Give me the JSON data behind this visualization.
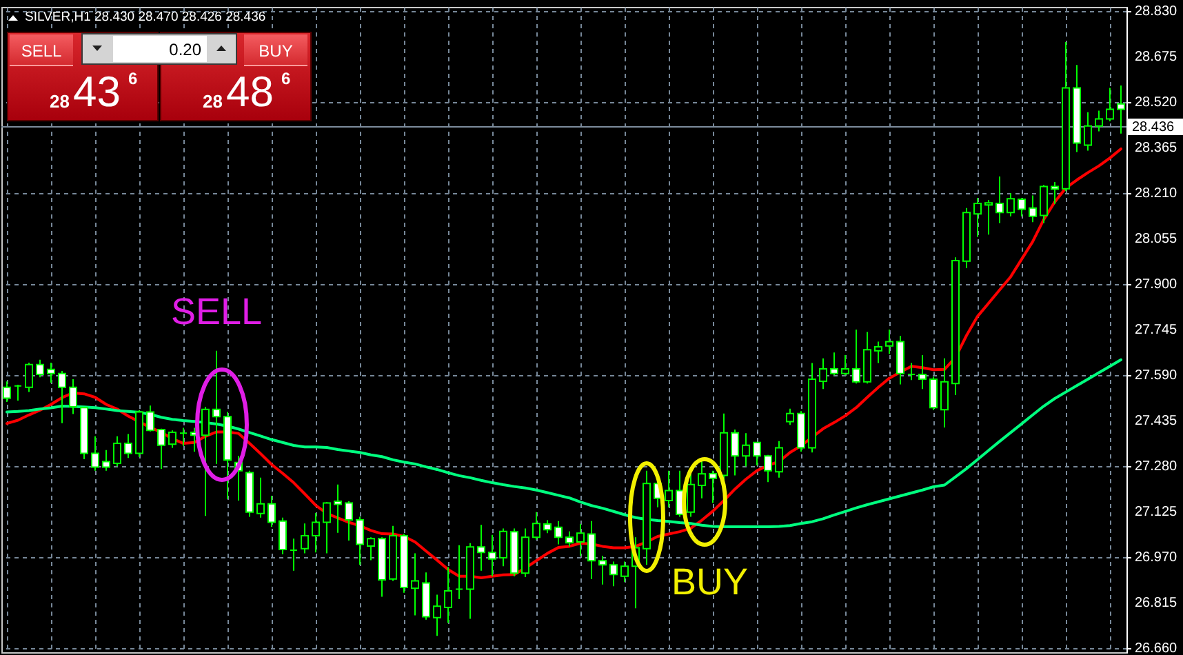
{
  "chart_data": {
    "type": "candlestick",
    "title": "SILVER,H1 28.430 28.470 28.426 28.436",
    "categories": [
      null,
      null,
      null,
      null,
      null,
      null,
      null,
      null,
      null,
      null,
      null,
      null,
      null,
      null,
      null,
      null,
      null,
      null,
      null,
      null,
      null,
      null,
      null,
      null,
      null,
      null,
      null,
      null,
      null,
      null,
      null,
      null,
      null,
      null,
      null,
      null,
      null,
      null,
      null,
      null,
      null,
      null,
      null,
      null,
      null,
      null,
      null,
      null,
      null,
      null,
      null,
      null,
      null,
      null,
      null,
      null,
      null,
      null,
      null,
      null,
      null,
      null,
      null,
      null,
      null,
      null,
      null,
      null,
      null,
      null,
      null,
      null,
      null,
      null,
      null,
      null,
      null,
      null,
      null,
      null,
      null,
      null,
      null,
      null,
      null,
      null,
      null,
      null,
      null,
      null,
      null,
      null,
      null,
      null,
      null,
      null,
      null,
      null,
      null,
      null,
      null,
      null
    ],
    "ohlc": [
      [
        27.548,
        27.568,
        27.498,
        27.511
      ],
      [
        27.553,
        27.557,
        27.503,
        27.553
      ],
      [
        27.548,
        27.632,
        27.532,
        27.626
      ],
      [
        27.626,
        27.642,
        27.582,
        27.592
      ],
      [
        27.609,
        27.632,
        27.564,
        27.595
      ],
      [
        27.595,
        27.604,
        27.426,
        27.548
      ],
      [
        27.548,
        27.576,
        27.457,
        27.482
      ],
      [
        27.479,
        27.482,
        27.303,
        27.323
      ],
      [
        27.323,
        27.381,
        27.264,
        27.276
      ],
      [
        27.295,
        27.334,
        27.264,
        27.276
      ],
      [
        27.289,
        27.381,
        27.279,
        27.357
      ],
      [
        27.357,
        27.389,
        27.307,
        27.323
      ],
      [
        27.323,
        27.47,
        27.31,
        27.464
      ],
      [
        27.464,
        27.486,
        27.398,
        27.401
      ],
      [
        27.404,
        27.407,
        27.27,
        27.351
      ],
      [
        27.354,
        27.401,
        27.342,
        27.395
      ],
      [
        27.392,
        27.41,
        27.348,
        27.392
      ],
      [
        27.395,
        27.41,
        27.329,
        27.385
      ],
      [
        27.385,
        27.482,
        27.11,
        27.473
      ],
      [
        27.473,
        27.673,
        27.287,
        27.448
      ],
      [
        27.448,
        27.464,
        27.167,
        27.3
      ],
      [
        27.292,
        27.314,
        27.162,
        27.264
      ],
      [
        27.257,
        27.264,
        27.107,
        27.123
      ],
      [
        27.118,
        27.24,
        27.104,
        27.151
      ],
      [
        27.151,
        27.178,
        27.073,
        27.088
      ],
      [
        27.092,
        27.104,
        26.979,
        26.995
      ],
      [
        26.993,
        27.032,
        26.923,
        26.993
      ],
      [
        26.998,
        27.084,
        26.982,
        27.042
      ],
      [
        27.042,
        27.12,
        26.985,
        27.088
      ],
      [
        27.088,
        27.157,
        26.982,
        27.154
      ],
      [
        27.16,
        27.217,
        27.052,
        27.149
      ],
      [
        27.154,
        27.16,
        27.026,
        27.096
      ],
      [
        27.096,
        27.107,
        26.943,
        27.013
      ],
      [
        27.007,
        27.037,
        26.959,
        27.032
      ],
      [
        27.032,
        27.037,
        26.834,
        26.892
      ],
      [
        26.895,
        27.076,
        26.888,
        27.042
      ],
      [
        27.042,
        27.048,
        26.848,
        26.866
      ],
      [
        26.863,
        26.982,
        26.771,
        26.888
      ],
      [
        26.881,
        26.917,
        26.756,
        26.766
      ],
      [
        26.763,
        26.841,
        26.701,
        26.802
      ],
      [
        26.798,
        26.935,
        26.745,
        26.854
      ],
      [
        26.86,
        27.01,
        26.826,
        26.86
      ],
      [
        26.86,
        27.017,
        26.759,
        27.004
      ],
      [
        27.004,
        27.079,
        26.923,
        26.985
      ],
      [
        26.985,
        27.045,
        26.904,
        26.963
      ],
      [
        26.967,
        27.067,
        26.938,
        27.057
      ],
      [
        27.056,
        27.067,
        26.904,
        26.915
      ],
      [
        26.915,
        27.067,
        26.901,
        27.037
      ],
      [
        27.037,
        27.123,
        27.029,
        27.084
      ],
      [
        27.082,
        27.095,
        27.051,
        27.063
      ],
      [
        27.071,
        27.092,
        27.013,
        27.037
      ],
      [
        27.037,
        27.057,
        27.006,
        27.018
      ],
      [
        27.021,
        27.082,
        26.974,
        27.051
      ],
      [
        27.048,
        27.092,
        26.895,
        26.957
      ],
      [
        26.957,
        26.974,
        26.876,
        26.943
      ],
      [
        26.943,
        26.954,
        26.87,
        26.91
      ],
      [
        26.904,
        26.954,
        26.885,
        26.938
      ],
      [
        26.938,
        27.037,
        26.795,
        27.001
      ],
      [
        26.998,
        27.264,
        26.943,
        27.22
      ],
      [
        27.22,
        27.229,
        27.139,
        27.17
      ],
      [
        27.162,
        27.264,
        27.139,
        27.196
      ],
      [
        27.196,
        27.264,
        27.107,
        27.115
      ],
      [
        27.123,
        27.264,
        27.107,
        27.217
      ],
      [
        27.214,
        27.303,
        27.17,
        27.253
      ],
      [
        27.254,
        27.264,
        27.154,
        27.238
      ],
      [
        27.248,
        27.459,
        27.232,
        27.393
      ],
      [
        27.393,
        27.404,
        27.248,
        27.314
      ],
      [
        27.314,
        27.392,
        27.279,
        27.351
      ],
      [
        27.36,
        27.36,
        27.282,
        27.314
      ],
      [
        27.314,
        27.318,
        27.225,
        27.264
      ],
      [
        27.26,
        27.365,
        27.24,
        27.342
      ],
      [
        27.431,
        27.475,
        27.42,
        27.459
      ],
      [
        27.459,
        27.467,
        27.329,
        27.342
      ],
      [
        27.342,
        27.631,
        27.326,
        27.576
      ],
      [
        27.569,
        27.647,
        27.542,
        27.611
      ],
      [
        27.611,
        27.667,
        27.589,
        27.595
      ],
      [
        27.595,
        27.658,
        27.589,
        27.611
      ],
      [
        27.611,
        27.745,
        27.561,
        27.567
      ],
      [
        27.567,
        27.737,
        27.561,
        27.676
      ],
      [
        27.673,
        27.704,
        27.631,
        27.686
      ],
      [
        27.689,
        27.745,
        27.662,
        27.704
      ],
      [
        27.704,
        27.723,
        27.558,
        27.595
      ],
      [
        27.592,
        27.631,
        27.573,
        27.592
      ],
      [
        27.592,
        27.658,
        27.542,
        27.576
      ],
      [
        27.576,
        27.584,
        27.47,
        27.479
      ],
      [
        27.472,
        27.647,
        27.411,
        27.567
      ],
      [
        27.561,
        27.991,
        27.522,
        27.98
      ],
      [
        27.978,
        28.159,
        27.954,
        28.144
      ],
      [
        28.139,
        28.194,
        28.061,
        28.175
      ],
      [
        28.17,
        28.186,
        28.069,
        28.177
      ],
      [
        28.175,
        28.267,
        28.108,
        28.144
      ],
      [
        28.144,
        28.21,
        28.131,
        28.191
      ],
      [
        28.189,
        28.194,
        28.131,
        28.155
      ],
      [
        28.159,
        28.202,
        28.111,
        28.131
      ],
      [
        28.134,
        28.238,
        28.108,
        28.233
      ],
      [
        28.233,
        28.248,
        28.173,
        28.224
      ],
      [
        28.225,
        28.725,
        28.217,
        28.569
      ],
      [
        28.569,
        28.647,
        28.35,
        28.381
      ],
      [
        28.374,
        28.486,
        28.355,
        28.439
      ],
      [
        28.439,
        28.491,
        28.421,
        28.463
      ],
      [
        28.463,
        28.569,
        28.455,
        28.496
      ],
      [
        28.514,
        28.577,
        28.413,
        28.496
      ]
    ],
    "color": "#00ff00",
    "colors": [
      "#ffffff",
      "#00ff00",
      "#000000",
      "#ffffff",
      "#ffffff",
      "#ffffff",
      "#ffffff",
      "#ffffff",
      "#ffffff",
      "#ffffff",
      "#000000",
      "#ffffff",
      "#000000",
      "#ffffff",
      "#ffffff",
      "#000000",
      "#00ff00",
      "#ffffff",
      "#000000",
      "#ffffff",
      "#ffffff",
      "#ffffff",
      "#ffffff",
      "#000000",
      "#ffffff",
      "#ffffff",
      "#00ff00",
      "#000000",
      "#000000",
      "#000000",
      "#ffffff",
      "#ffffff",
      "#ffffff",
      "#000000",
      "#ffffff",
      "#000000",
      "#ffffff",
      "#000000",
      "#ffffff",
      "#000000",
      "#000000",
      "#00ff00",
      "#000000",
      "#ffffff",
      "#ffffff",
      "#000000",
      "#ffffff",
      "#000000",
      "#000000",
      "#ffffff",
      "#ffffff",
      "#ffffff",
      "#000000",
      "#ffffff",
      "#ffffff",
      "#ffffff",
      "#000000",
      "#000000",
      "#000000",
      "#ffffff",
      "#000000",
      "#ffffff",
      "#000000",
      "#000000",
      "#ffffff",
      "#000000",
      "#ffffff",
      "#000000",
      "#ffffff",
      "#ffffff",
      "#000000",
      "#000000",
      "#ffffff",
      "#000000",
      "#000000",
      "#ffffff",
      "#000000",
      "#ffffff",
      "#000000",
      "#000000",
      "#000000",
      "#ffffff",
      "#00ff00",
      "#ffffff",
      "#ffffff",
      "#000000",
      "#000000",
      "#000000",
      "#000000",
      "#000000",
      "#ffffff",
      "#000000",
      "#ffffff",
      "#ffffff",
      "#000000",
      "#ffffff",
      "#000000",
      "#ffffff",
      "#000000",
      "#000000",
      "#000000",
      "#ffffff"
    ],
    "series": [
      {
        "type": "line",
        "color": "#ff0000",
        "values": [
          27.425,
          27.436,
          27.454,
          27.47,
          27.49,
          27.513,
          27.529,
          27.526,
          27.514,
          27.49,
          27.474,
          27.45,
          27.431,
          27.411,
          27.395,
          27.373,
          27.357,
          27.36,
          27.381,
          27.396,
          27.396,
          27.391,
          27.357,
          27.322,
          27.285,
          27.255,
          27.223,
          27.185,
          27.146,
          27.118,
          27.103,
          27.088,
          27.076,
          27.06,
          27.049,
          27.048,
          27.04,
          27.021,
          26.99,
          26.959,
          26.927,
          26.904,
          26.904,
          26.899,
          26.904,
          26.909,
          26.91,
          26.932,
          26.957,
          26.982,
          27.002,
          27.006,
          27.017,
          27.014,
          27.006,
          27.001,
          27.001,
          27.006,
          27.021,
          27.04,
          27.048,
          27.056,
          27.068,
          27.095,
          27.126,
          27.162,
          27.201,
          27.235,
          27.264,
          27.282,
          27.295,
          27.326,
          27.349,
          27.378,
          27.407,
          27.428,
          27.451,
          27.479,
          27.514,
          27.548,
          27.579,
          27.6,
          27.62,
          27.615,
          27.608,
          27.609,
          27.65,
          27.725,
          27.79,
          27.835,
          27.88,
          27.925,
          27.985,
          28.045,
          28.12,
          28.18,
          28.228,
          28.255,
          28.28,
          28.303,
          28.33,
          28.361
        ]
      },
      {
        "type": "line",
        "color": "#00ff7f",
        "values": [
          27.464,
          27.466,
          27.469,
          27.474,
          27.478,
          27.484,
          27.483,
          27.481,
          27.479,
          27.474,
          27.469,
          27.466,
          27.463,
          27.456,
          27.446,
          27.439,
          27.435,
          27.432,
          27.428,
          27.423,
          27.416,
          27.406,
          27.394,
          27.382,
          27.37,
          27.36,
          27.35,
          27.345,
          27.345,
          27.343,
          27.336,
          27.331,
          27.326,
          27.318,
          27.312,
          27.301,
          27.293,
          27.287,
          27.277,
          27.268,
          27.257,
          27.247,
          27.24,
          27.231,
          27.223,
          27.216,
          27.21,
          27.205,
          27.198,
          27.189,
          27.18,
          27.171,
          27.157,
          27.145,
          27.136,
          27.125,
          27.114,
          27.104,
          27.098,
          27.094,
          27.091,
          27.087,
          27.084,
          27.078,
          27.074,
          27.073,
          27.073,
          27.073,
          27.073,
          27.073,
          27.074,
          27.077,
          27.084,
          27.09,
          27.1,
          27.113,
          27.125,
          27.137,
          27.148,
          27.158,
          27.168,
          27.178,
          27.188,
          27.198,
          27.209,
          27.215,
          27.243,
          27.271,
          27.302,
          27.333,
          27.364,
          27.394,
          27.424,
          27.454,
          27.484,
          27.51,
          27.532,
          27.554,
          27.576,
          27.598,
          27.62,
          27.642
        ]
      }
    ],
    "ylim": [
      26.645,
      28.845
    ],
    "yticks": [
      {
        "value": 26.66,
        "label": "26.660"
      },
      26.815,
      {
        "value": 26.97,
        "label": "26.970"
      },
      27.125,
      {
        "value": 27.28,
        "label": "27.280"
      },
      27.435,
      {
        "value": 27.59,
        "label": "27.590"
      },
      27.745,
      {
        "value": 27.9,
        "label": "27.900"
      },
      28.055,
      {
        "value": 28.21,
        "label": "28.210"
      },
      28.365,
      {
        "value": 28.52,
        "label": "28.520"
      },
      28.675,
      {
        "value": 28.83,
        "label": "28.830"
      }
    ],
    "ref_lines": [
      {
        "axis": "y",
        "value": 28.436,
        "label": "28.436",
        "color": "#7d8c9c"
      }
    ],
    "grid": true,
    "tick_labels": "y",
    "annotations": [
      "SELL",
      "BUY",
      "SELL",
      "0.20",
      "BUY",
      "28",
      "43",
      "6",
      "28",
      "48",
      "6"
    ]
  }
}
